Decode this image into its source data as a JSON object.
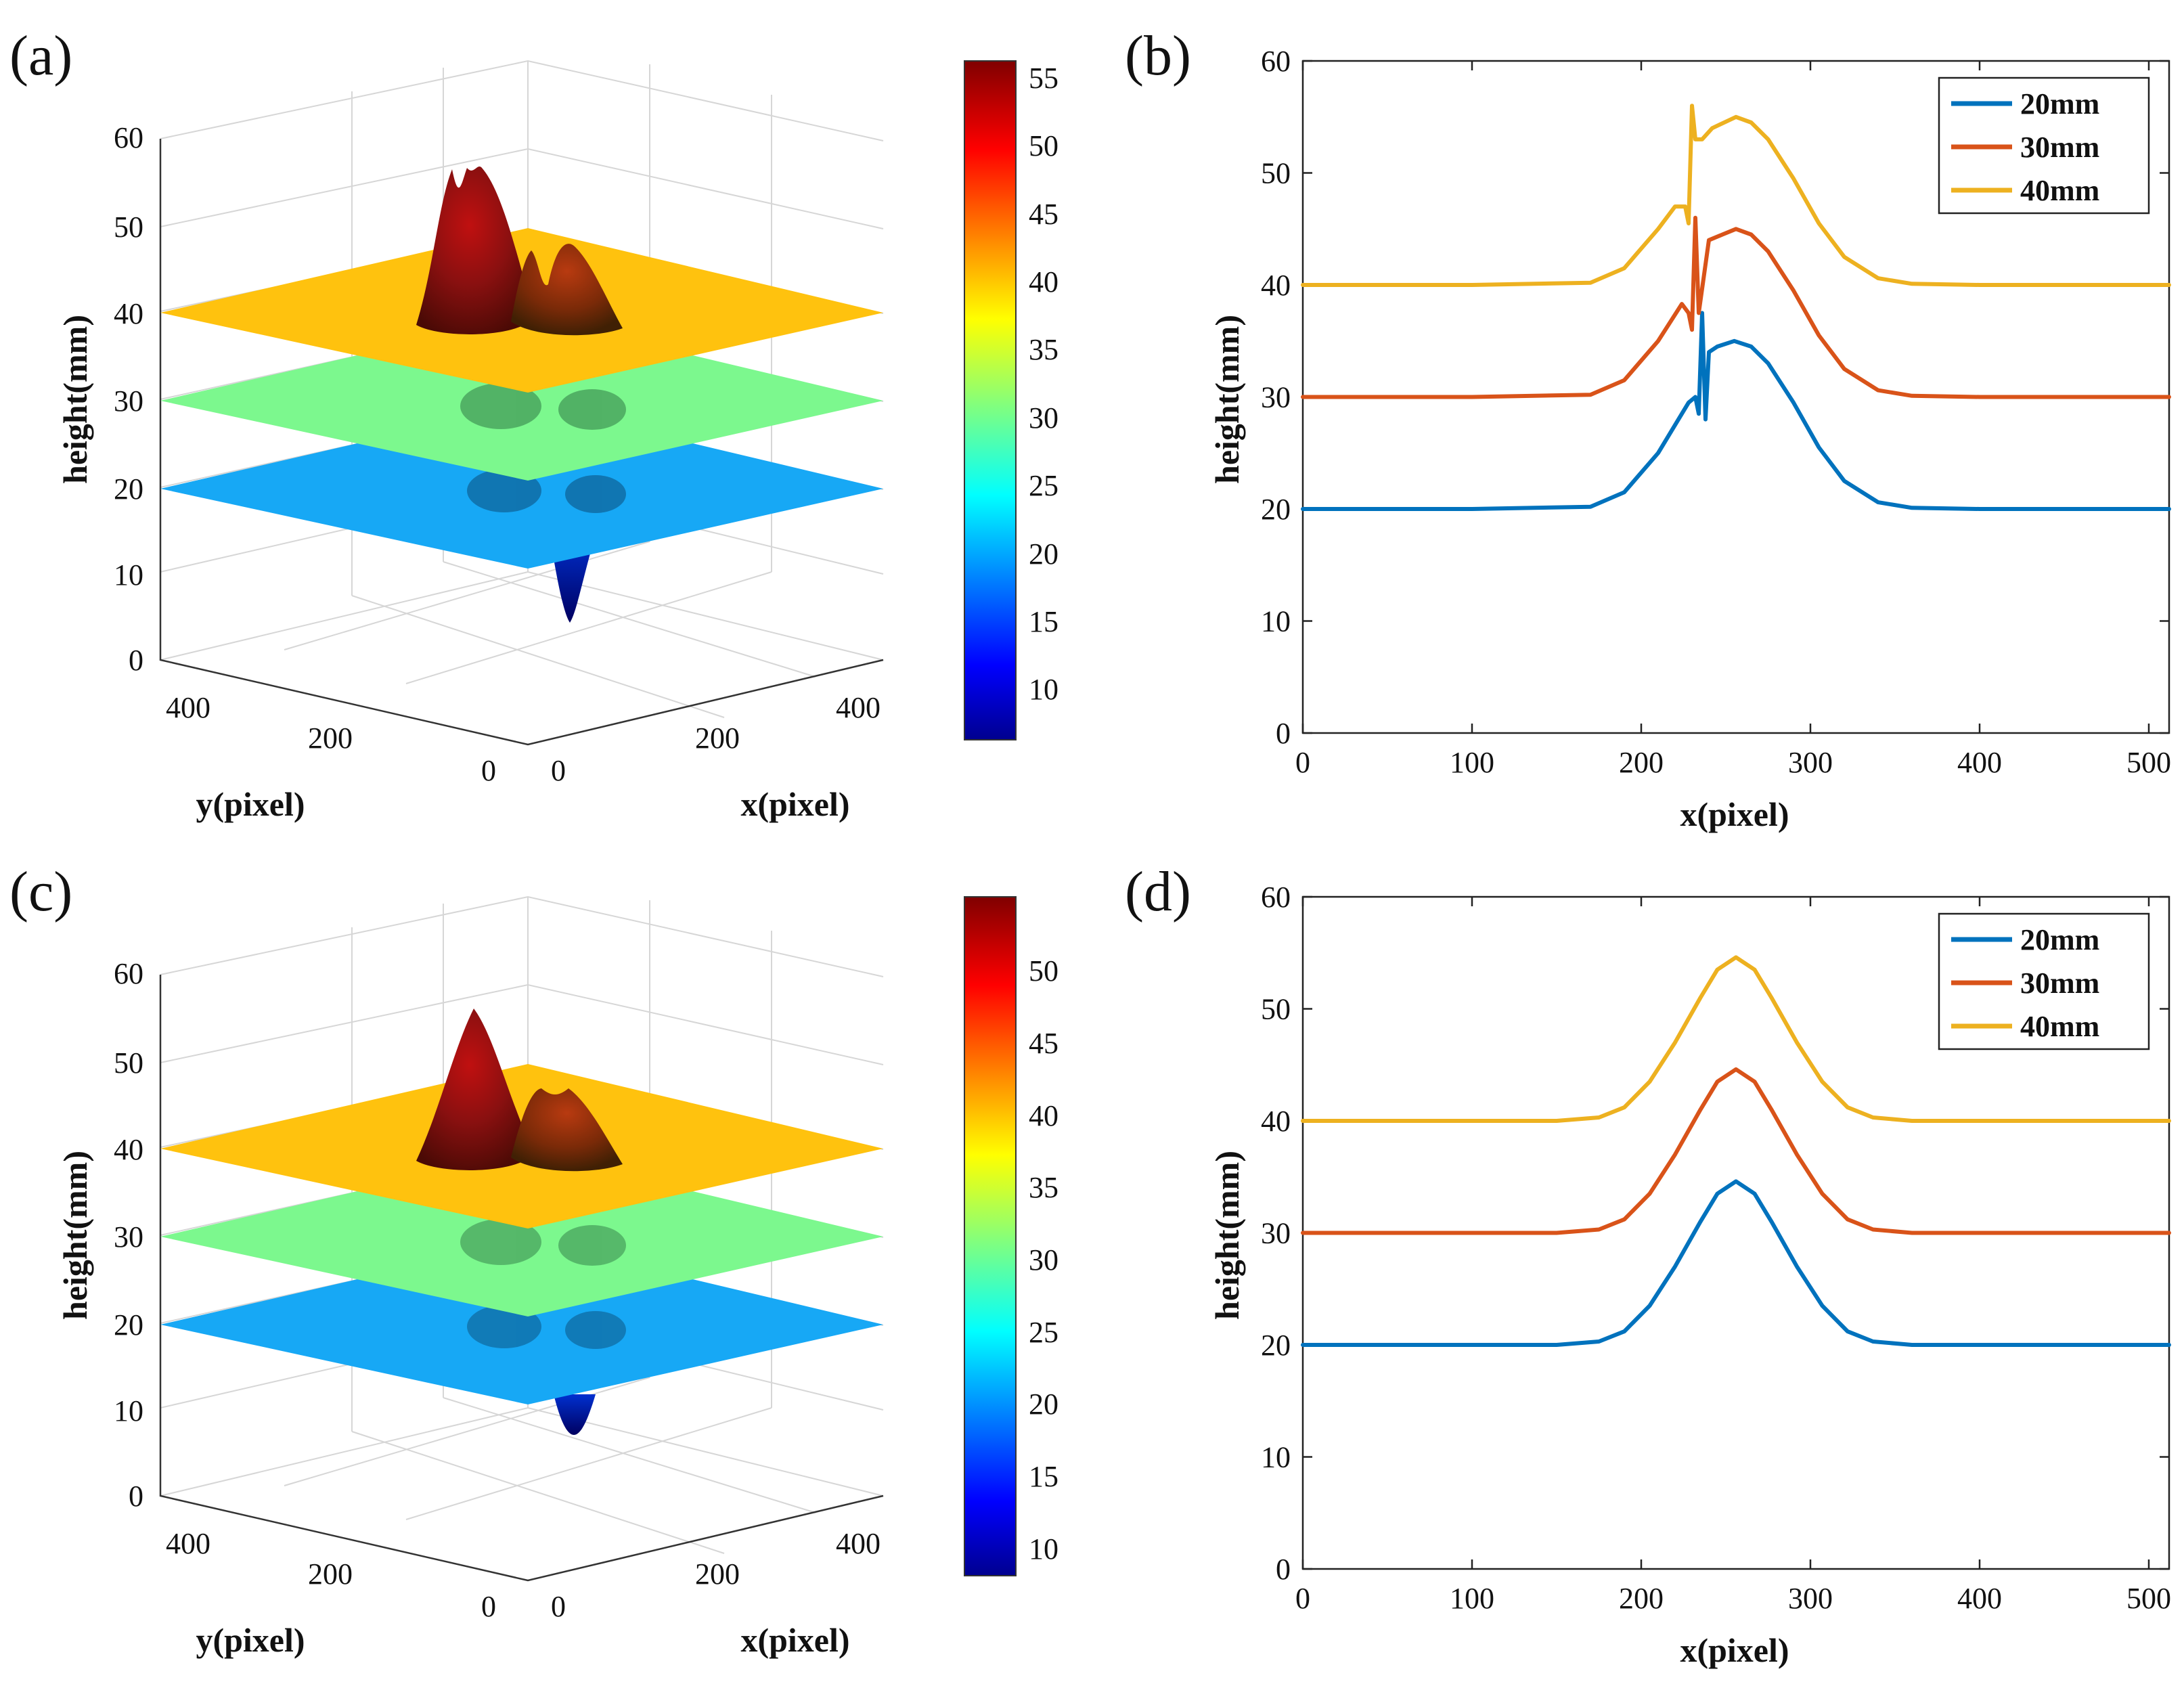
{
  "chart_data": [
    {
      "panel_label": "(a)",
      "type": "surface3d",
      "xlabel": "x(pixel)",
      "ylabel": "y(pixel)",
      "zlabel": "height(mm)",
      "x_ticks": [
        "0",
        "200",
        "400"
      ],
      "y_ticks": [
        "0",
        "200",
        "400"
      ],
      "z_ticks": [
        "0",
        "10",
        "20",
        "30",
        "40",
        "50",
        "60"
      ],
      "zlim": [
        0,
        60
      ],
      "planes": [
        {
          "height": 40,
          "color": "#FFC20E"
        },
        {
          "height": 30,
          "color": "#7CF88E"
        },
        {
          "height": 20,
          "color": "#17A8F5"
        }
      ],
      "colorbar": {
        "range": [
          6,
          56
        ],
        "ticks": [
          "10",
          "15",
          "20",
          "25",
          "30",
          "35",
          "40",
          "45",
          "50",
          "55"
        ]
      }
    },
    {
      "panel_label": "(b)",
      "type": "line",
      "xlabel": "x(pixel)",
      "ylabel": "height(mm)",
      "xlim": [
        0,
        512
      ],
      "ylim": [
        0,
        60
      ],
      "x_ticks": [
        "0",
        "100",
        "200",
        "300",
        "400",
        "500"
      ],
      "y_ticks": [
        "0",
        "10",
        "20",
        "30",
        "40",
        "50",
        "60"
      ],
      "legend": [
        "20mm",
        "30mm",
        "40mm"
      ],
      "series": [
        {
          "name": "20mm",
          "color": "#0072BD",
          "x": [
            0,
            100,
            170,
            190,
            210,
            228,
            232,
            234,
            236,
            238,
            240,
            245,
            255,
            265,
            275,
            290,
            305,
            320,
            340,
            360,
            400,
            450,
            512
          ],
          "y": [
            20,
            20,
            20.2,
            21.5,
            25,
            29.5,
            30,
            28.5,
            37.5,
            28,
            34,
            34.5,
            35,
            34.5,
            33,
            29.5,
            25.5,
            22.5,
            20.6,
            20.1,
            20,
            20,
            20
          ]
        },
        {
          "name": "30mm",
          "color": "#D95319",
          "x": [
            0,
            100,
            170,
            190,
            210,
            224,
            228,
            230,
            232,
            234,
            240,
            248,
            256,
            265,
            275,
            290,
            305,
            320,
            340,
            360,
            400,
            450,
            512
          ],
          "y": [
            30,
            30,
            30.2,
            31.5,
            35,
            38.3,
            37.5,
            36,
            46,
            37.5,
            44,
            44.5,
            45,
            44.5,
            43,
            39.5,
            35.5,
            32.5,
            30.6,
            30.1,
            30,
            30,
            30
          ]
        },
        {
          "name": "40mm",
          "color": "#EDB120",
          "x": [
            0,
            100,
            170,
            190,
            210,
            220,
            226,
            228,
            230,
            232,
            236,
            242,
            256,
            265,
            275,
            290,
            305,
            320,
            340,
            360,
            400,
            450,
            512
          ],
          "y": [
            40,
            40,
            40.2,
            41.5,
            45,
            47,
            47,
            45.5,
            56,
            53,
            53,
            54,
            55,
            54.5,
            53,
            49.5,
            45.5,
            42.5,
            40.6,
            40.1,
            40,
            40,
            40
          ]
        }
      ]
    },
    {
      "panel_label": "(c)",
      "type": "surface3d",
      "xlabel": "x(pixel)",
      "ylabel": "y(pixel)",
      "zlabel": "height(mm)",
      "x_ticks": [
        "0",
        "200",
        "400"
      ],
      "y_ticks": [
        "0",
        "200",
        "400"
      ],
      "z_ticks": [
        "0",
        "10",
        "20",
        "30",
        "40",
        "50",
        "60"
      ],
      "zlim": [
        0,
        60
      ],
      "planes": [
        {
          "height": 40,
          "color": "#FFC20E"
        },
        {
          "height": 30,
          "color": "#7CF88E"
        },
        {
          "height": 20,
          "color": "#17A8F5"
        }
      ],
      "colorbar": {
        "range": [
          8,
          55
        ],
        "ticks": [
          "10",
          "15",
          "20",
          "25",
          "30",
          "35",
          "40",
          "45",
          "50"
        ]
      }
    },
    {
      "panel_label": "(d)",
      "type": "line",
      "xlabel": "x(pixel)",
      "ylabel": "height(mm)",
      "xlim": [
        0,
        512
      ],
      "ylim": [
        0,
        60
      ],
      "x_ticks": [
        "0",
        "100",
        "200",
        "300",
        "400",
        "500"
      ],
      "y_ticks": [
        "0",
        "10",
        "20",
        "30",
        "40",
        "50",
        "60"
      ],
      "legend": [
        "20mm",
        "30mm",
        "40mm"
      ],
      "series": [
        {
          "name": "20mm",
          "color": "#0072BD",
          "x": [
            0,
            100,
            150,
            175,
            190,
            205,
            220,
            235,
            245,
            256,
            267,
            277,
            292,
            307,
            322,
            337,
            360,
            400,
            450,
            512
          ],
          "y": [
            20,
            20,
            20,
            20.3,
            21.2,
            23.5,
            27,
            31,
            33.5,
            34.6,
            33.5,
            31,
            27,
            23.5,
            21.2,
            20.3,
            20,
            20,
            20,
            20
          ]
        },
        {
          "name": "30mm",
          "color": "#D95319",
          "x": [
            0,
            100,
            150,
            175,
            190,
            205,
            220,
            235,
            245,
            256,
            267,
            277,
            292,
            307,
            322,
            337,
            360,
            400,
            450,
            512
          ],
          "y": [
            30,
            30,
            30,
            30.3,
            31.2,
            33.5,
            37,
            41,
            43.5,
            44.6,
            43.5,
            41,
            37,
            33.5,
            31.2,
            30.3,
            30,
            30,
            30,
            30
          ]
        },
        {
          "name": "40mm",
          "color": "#EDB120",
          "x": [
            0,
            100,
            150,
            175,
            190,
            205,
            220,
            235,
            245,
            256,
            267,
            277,
            292,
            307,
            322,
            337,
            360,
            400,
            450,
            512
          ],
          "y": [
            40,
            40,
            40,
            40.3,
            41.2,
            43.5,
            47,
            51,
            53.5,
            54.6,
            53.5,
            51,
            47,
            43.5,
            41.2,
            40.3,
            40,
            40,
            40,
            40
          ]
        }
      ]
    }
  ]
}
